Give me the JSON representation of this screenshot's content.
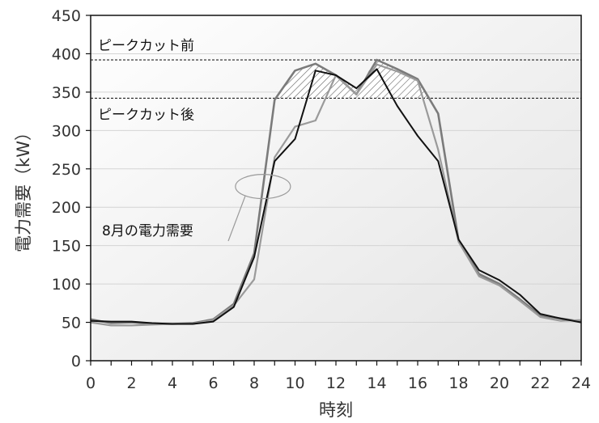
{
  "chart_data": {
    "type": "line",
    "xlabel": "時刻",
    "ylabel": "電力需要（kW）",
    "xlim": [
      0,
      24
    ],
    "ylim": [
      0,
      450
    ],
    "xticks": [
      "0",
      "2",
      "4",
      "6",
      "8",
      "10",
      "12",
      "14",
      "16",
      "18",
      "20",
      "22",
      "24"
    ],
    "yticks": [
      "0",
      "50",
      "100",
      "150",
      "200",
      "250",
      "300",
      "350",
      "400",
      "450"
    ],
    "grid": true,
    "x": [
      0,
      1,
      2,
      3,
      4,
      5,
      6,
      7,
      8,
      9,
      10,
      11,
      12,
      13,
      14,
      15,
      16,
      17,
      18,
      19,
      20,
      21,
      22,
      23,
      24
    ],
    "series": [
      {
        "values": [
          54,
          49,
          50,
          48,
          48,
          49,
          54,
          74,
          140,
          340,
          378,
          387,
          372,
          347,
          392,
          380,
          367,
          322,
          157,
          113,
          100,
          80,
          59,
          55,
          51
        ]
      },
      {
        "values": [
          50,
          46,
          46,
          47,
          48,
          48,
          53,
          72,
          106,
          265,
          305,
          313,
          372,
          347,
          386,
          377,
          365,
          275,
          155,
          110,
          98,
          78,
          57,
          52,
          53
        ]
      },
      {
        "values": [
          52,
          51,
          51,
          49,
          48,
          48,
          51,
          70,
          135,
          260,
          289,
          378,
          372,
          355,
          380,
          332,
          293,
          260,
          158,
          118,
          105,
          86,
          61,
          55,
          50
        ]
      }
    ],
    "reference_lines": [
      {
        "label": "ピークカット前",
        "value": 392
      },
      {
        "label": "ピークカット後",
        "value": 342
      }
    ],
    "annotation": "8月の電力需要"
  }
}
